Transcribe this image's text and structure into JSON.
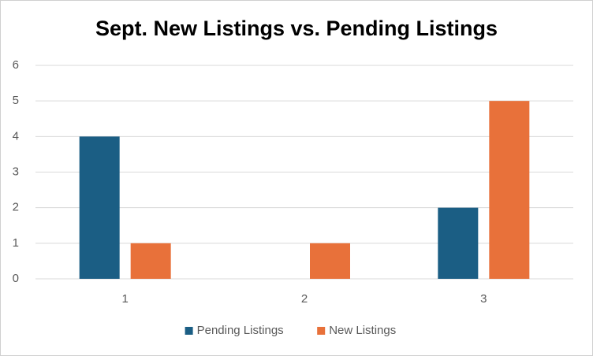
{
  "chart_data": {
    "type": "bar",
    "title": "Sept. New Listings vs. Pending Listings",
    "categories": [
      "1",
      "2",
      "3"
    ],
    "series": [
      {
        "name": "Pending Listings",
        "color": "#1b5e84",
        "values": [
          4,
          0,
          2
        ]
      },
      {
        "name": "New Listings",
        "color": "#e8713a",
        "values": [
          1,
          1,
          5
        ]
      }
    ],
    "ylim": [
      0,
      6
    ],
    "yticks": [
      0,
      1,
      2,
      3,
      4,
      5,
      6
    ],
    "grid": true,
    "legend": "bottom"
  }
}
